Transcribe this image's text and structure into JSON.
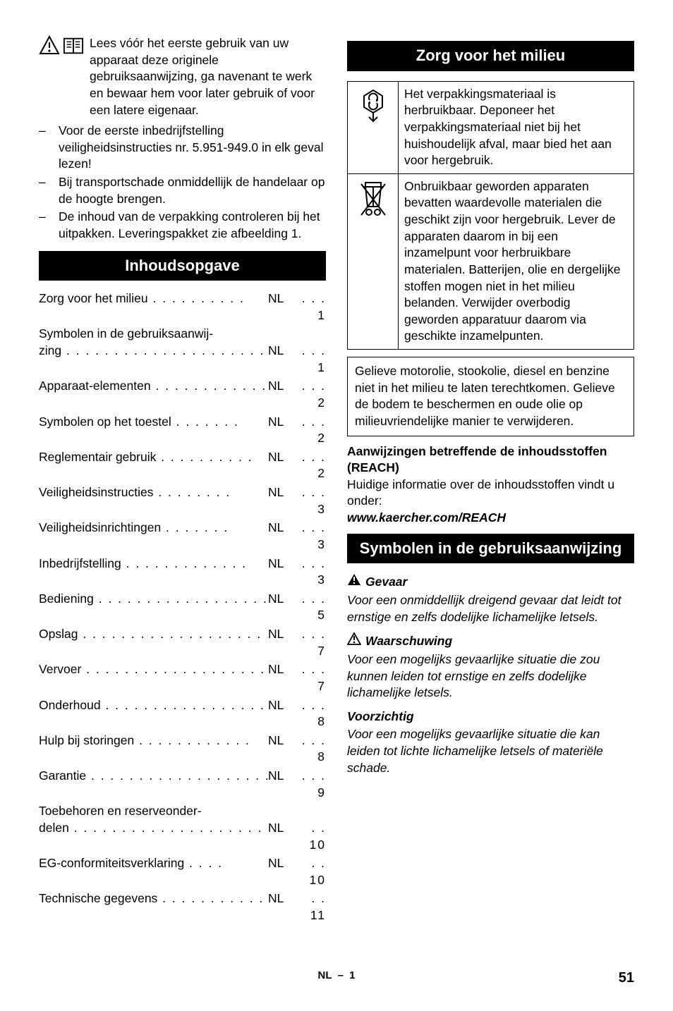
{
  "intro": {
    "line1": "Lees vóór het eerste gebruik van uw apparaat deze originele gebruiksaanwijzing, ga navenant te werk en bewaar hem voor later gebruik of voor een latere eigenaar.",
    "bullets": [
      "Voor de eerste inbedrijfstelling veiligheidsinstructies nr. 5.951-949.0 in elk geval lezen!",
      "Bij transportschade onmiddellijk de handelaar op de hoogte brengen.",
      "De inhoud van de verpakking controleren bij het uitpakken. Leveringspakket zie afbeelding 1."
    ]
  },
  "headings": {
    "toc": "Inhoudsopgave",
    "env": "Zorg voor het milieu",
    "symbols": "Symbolen in de gebruiksaanwijzing"
  },
  "toc": [
    {
      "label": "Zorg voor het milieu",
      "lang": "NL",
      "page": "1"
    },
    {
      "label": "Symbolen in de gebruiksaanwijzing",
      "lang": "NL",
      "page": "1",
      "wrap": true,
      "wrapPrefix": "Symbolen in de gebruiksaanwij-",
      "wrapSuffix": "zing"
    },
    {
      "label": "Apparaat-elementen",
      "lang": "NL",
      "page": "2"
    },
    {
      "label": "Symbolen op het toestel",
      "lang": "NL",
      "page": "2"
    },
    {
      "label": "Reglementair gebruik",
      "lang": "NL",
      "page": "2"
    },
    {
      "label": "Veiligheidsinstructies",
      "lang": "NL",
      "page": "3"
    },
    {
      "label": "Veiligheidsinrichtingen",
      "lang": "NL",
      "page": "3"
    },
    {
      "label": "Inbedrijfstelling",
      "lang": "NL",
      "page": "3"
    },
    {
      "label": "Bediening",
      "lang": "NL",
      "page": "5"
    },
    {
      "label": "Opslag",
      "lang": "NL",
      "page": "7"
    },
    {
      "label": "Vervoer",
      "lang": "NL",
      "page": "7"
    },
    {
      "label": "Onderhoud",
      "lang": "NL",
      "page": "8"
    },
    {
      "label": "Hulp bij storingen",
      "lang": "NL",
      "page": "8"
    },
    {
      "label": "Garantie",
      "lang": "NL",
      "page": "9"
    },
    {
      "label": "Toebehoren en reserveonderdelen",
      "lang": "NL",
      "page": "10",
      "wrap": true,
      "wrapPrefix": "Toebehoren en reserveonder-",
      "wrapSuffix": "delen"
    },
    {
      "label": "EG-conformiteitsverklaring",
      "lang": "NL",
      "page": "10"
    },
    {
      "label": "Technische gegevens",
      "lang": "NL",
      "page": "11"
    }
  ],
  "env": {
    "row1": "Het verpakkingsmateriaal is herbruikbaar. Deponeer het verpakkingsmateriaal niet bij het huishoudelijk afval, maar bied het aan voor hergebruik.",
    "row2": "Onbruikbaar geworden apparaten bevatten waardevolle materialen die geschikt zijn voor hergebruik. Lever de apparaten daarom in bij een inzamelpunt voor herbruikbare materialen. Batterijen, olie en dergelijke stoffen mogen niet in het milieu belanden. Verwijder overbodig geworden apparatuur daarom via geschikte inzamelpunten.",
    "warnbox": "Gelieve motorolie, stookolie, diesel en benzine niet in het milieu te laten terechtkomen. Gelieve de bodem te beschermen en oude olie op milieuvriendelijke manier te verwijderen.",
    "reachHead": "Aanwijzingen betreffende de inhoudsstoffen (REACH)",
    "reachBody": "Huidige informatie over de inhoudsstoffen vindt u onder:",
    "reachUrl": "www.kaercher.com/REACH"
  },
  "symbols": {
    "items": [
      {
        "icon": "danger",
        "title": "Gevaar",
        "body": "Voor een onmiddellijk dreigend gevaar dat leidt tot ernstige en zelfs dodelijke lichamelijke letsels."
      },
      {
        "icon": "warning",
        "title": "Waarschuwing",
        "body": "Voor een mogelijks gevaarlijke situatie die zou kunnen leiden tot ernstige en zelfs dodelijke lichamelijke letsels."
      },
      {
        "icon": "none",
        "title": "Voorzichtig",
        "body": "Voor een mogelijks gevaarlijke situatie die kan leiden tot lichte lichamelijke letsels of materiële schade."
      }
    ]
  },
  "footer": {
    "center_lang": "NL",
    "center_sep": "–",
    "center_page": "1",
    "pagenum": "51"
  }
}
